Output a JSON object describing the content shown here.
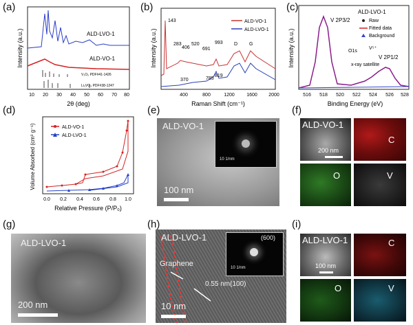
{
  "panels": {
    "a": {
      "letter": "(a)",
      "sample_top": "ALD-LVO-1",
      "sample_mid": "ALD-VO-1",
      "ref1": "V₂O₅ PDF#41-1426",
      "ref2": "Li₃VO₄ PDF#38-1247",
      "ylabel": "Intensity  (a.u.)",
      "xlabel": "2θ (deg)",
      "xticks": [
        "10",
        "20",
        "30",
        "40",
        "50",
        "60",
        "70",
        "80"
      ]
    },
    "b": {
      "letter": "(b)",
      "legend": [
        "ALD-VO-1",
        "ALD-LVO-1"
      ],
      "peaks": [
        "143",
        "283",
        "406",
        "520",
        "691",
        "993",
        "D",
        "G",
        "370",
        "785",
        "819"
      ],
      "ylabel": "Intensity (a.u.)",
      "xlabel": "Raman Shift  (cm⁻¹)",
      "xticks": [
        "400",
        "800",
        "1200",
        "1600",
        "2000"
      ]
    },
    "c": {
      "letter": "(c)",
      "title": "ALD-LVO-1",
      "peak1": "V 2P3/2",
      "peak2": "V 2P1/2",
      "legend": [
        "Raw",
        "Fitted data",
        "Background"
      ],
      "annot": [
        "O1s",
        "V⁵⁺",
        "x-ray satellite"
      ],
      "ylabel": "Intensity (a.u.)",
      "xlabel": "Binding Energy  (eV)",
      "xticks": [
        "516",
        "518",
        "520",
        "522",
        "524",
        "526",
        "528"
      ]
    },
    "d": {
      "letter": "(d)",
      "legend": [
        "ALD-VO-1",
        "ALD-LVO-1"
      ],
      "ylabel": "Volume Absorbed  (cm³ g⁻¹)",
      "xlabel": "Relative Pressure  (P/P₀)",
      "xticks": [
        "0.0",
        "0.2",
        "0.4",
        "0.6",
        "0.8",
        "1.0"
      ]
    },
    "e": {
      "letter": "(e)",
      "label": "ALD-VO-1",
      "scalebar": "100 nm",
      "saed_scale": "10 1/nm"
    },
    "f": {
      "letter": "(f)",
      "label": "ALD-VO-1",
      "scalebar": "200 nm",
      "elements": [
        "C",
        "O",
        "V"
      ]
    },
    "g": {
      "letter": "(g)",
      "label": "ALD-LVO-1",
      "scalebar": "200 nm"
    },
    "h": {
      "letter": "(h)",
      "label": "ALD-LVO-1",
      "graphene": "Graphene",
      "lattice": "0.55 nm(100)",
      "scalebar": "10 nm",
      "saed_scale": "10 1/nm",
      "saed_plane": "(600)"
    },
    "i": {
      "letter": "(i)",
      "label": "ALD-LVO-1",
      "scalebar": "100 nm",
      "elements": [
        "C",
        "O",
        "V"
      ]
    }
  },
  "chart_data": [
    {
      "type": "line",
      "title": "",
      "xlabel": "2θ (deg)",
      "ylabel": "Intensity (a.u.)",
      "xlim": [
        10,
        80
      ],
      "series": [
        {
          "name": "ALD-LVO-1",
          "x": [
            16,
            21.5,
            22.5,
            23,
            24.5,
            27,
            29,
            32,
            34,
            36,
            38,
            43,
            48,
            55,
            58,
            62,
            70
          ],
          "y": [
            0.3,
            0.9,
            1.0,
            0.8,
            0.55,
            0.45,
            0.5,
            0.35,
            0.3,
            0.38,
            0.25,
            0.2,
            0.18,
            0.15,
            0.2,
            0.12,
            0.1
          ]
        },
        {
          "name": "ALD-VO-1",
          "x": [
            10,
            20,
            25,
            30,
            40,
            50,
            60,
            70,
            80
          ],
          "y": [
            0.1,
            0.22,
            0.18,
            0.12,
            0.08,
            0.06,
            0.05,
            0.05,
            0.05
          ]
        }
      ]
    },
    {
      "type": "line",
      "xlabel": "Raman Shift (cm⁻¹)",
      "ylabel": "Intensity (a.u.)",
      "xlim": [
        0,
        2000
      ],
      "series": [
        {
          "name": "ALD-VO-1",
          "x": [
            143,
            283,
            406,
            520,
            691,
            993,
            1350,
            1590
          ],
          "y": [
            1.0,
            0.3,
            0.28,
            0.28,
            0.22,
            0.25,
            0.4,
            0.42
          ]
        },
        {
          "name": "ALD-LVO-1",
          "x": [
            370,
            785,
            819,
            1350,
            1590
          ],
          "y": [
            0.05,
            0.1,
            0.15,
            0.35,
            0.38
          ]
        }
      ]
    },
    {
      "type": "line",
      "xlabel": "Binding Energy (eV)",
      "ylabel": "Intensity (a.u.)",
      "xlim": [
        515,
        528
      ],
      "series": [
        {
          "name": "Raw",
          "x": [
            516,
            517,
            517.5,
            518,
            518.5,
            519,
            520,
            522,
            524,
            525,
            525.6,
            526,
            526.5,
            527,
            528
          ],
          "y": [
            0.05,
            0.4,
            0.85,
            1.0,
            0.85,
            0.4,
            0.08,
            0.04,
            0.1,
            0.2,
            0.3,
            0.28,
            0.2,
            0.1,
            0.05
          ]
        }
      ]
    },
    {
      "type": "line",
      "xlabel": "Relative Pressure (P/P₀)",
      "ylabel": "Volume Absorbed (cm³ g⁻¹)",
      "xlim": [
        0,
        1.0
      ],
      "series": [
        {
          "name": "ALD-VO-1",
          "x": [
            0.0,
            0.2,
            0.4,
            0.5,
            0.6,
            0.8,
            0.9,
            0.95,
            1.0
          ],
          "y": [
            30,
            45,
            55,
            70,
            110,
            180,
            300,
            450,
            700
          ]
        },
        {
          "name": "ALD-LVO-1",
          "x": [
            0.0,
            0.2,
            0.4,
            0.5,
            0.6,
            0.8,
            0.9,
            0.95,
            1.0
          ],
          "y": [
            10,
            15,
            20,
            25,
            35,
            60,
            90,
            130,
            190
          ]
        }
      ]
    }
  ]
}
